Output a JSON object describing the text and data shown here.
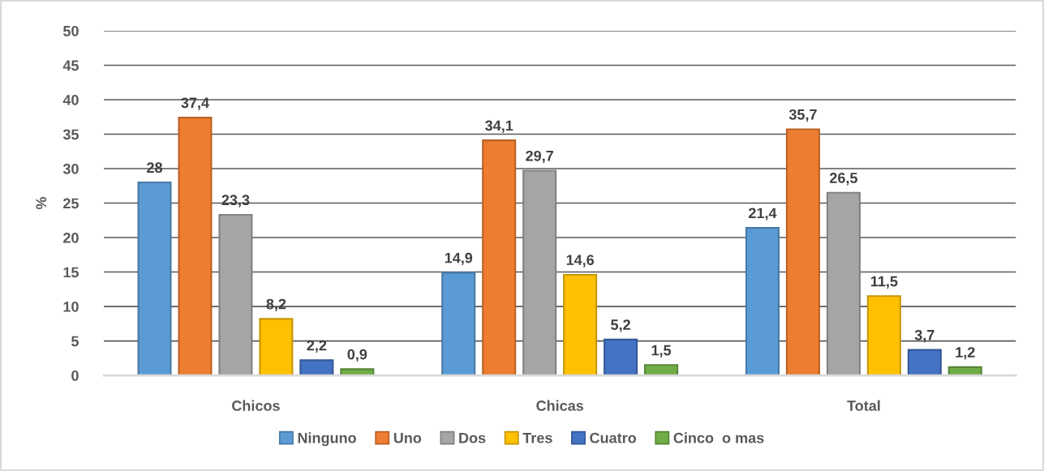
{
  "chart_data": {
    "type": "bar",
    "ylabel": "%",
    "categories": [
      "Chicos",
      "Chicas",
      "Total"
    ],
    "series": [
      {
        "name": "Ninguno",
        "color": "#5b9bd5",
        "values": [
          28,
          14.9,
          21.4
        ],
        "value_labels": [
          "28",
          "14,9",
          "21,4"
        ]
      },
      {
        "name": "Uno",
        "color": "#ed7d31",
        "values": [
          37.4,
          34.1,
          35.7
        ],
        "value_labels": [
          "37,4",
          "34,1",
          "35,7"
        ]
      },
      {
        "name": "Dos",
        "color": "#a5a5a5",
        "values": [
          23.3,
          29.7,
          26.5
        ],
        "value_labels": [
          "23,3",
          "29,7",
          "26,5"
        ]
      },
      {
        "name": "Tres",
        "color": "#ffc000",
        "values": [
          8.2,
          14.6,
          11.5
        ],
        "value_labels": [
          "8,2",
          "14,6",
          "11,5"
        ]
      },
      {
        "name": "Cuatro",
        "color": "#4472c4",
        "values": [
          2.2,
          5.2,
          3.7
        ],
        "value_labels": [
          "2,2",
          "5,2",
          "3,7"
        ]
      },
      {
        "name": "Cinco  o mas",
        "color": "#70ad47",
        "values": [
          0.9,
          1.5,
          1.2
        ],
        "value_labels": [
          "0,9",
          "1,5",
          "1,2"
        ]
      }
    ],
    "ylim": [
      0,
      50
    ],
    "yticks": [
      0,
      5,
      10,
      15,
      20,
      25,
      30,
      35,
      40,
      45,
      50
    ],
    "grid": "y",
    "legend": "bottom"
  }
}
